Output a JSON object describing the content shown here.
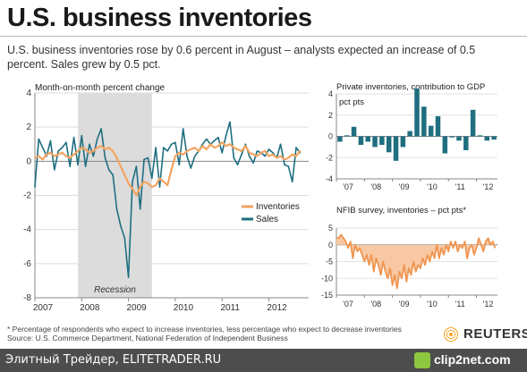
{
  "header": {
    "title": "U.S. business inventories",
    "subtitle": "U.S. business inventories rose by 0.6 percent in August – analysts expected an increase of 0.5 percent. Sales grew by 0.5 pct."
  },
  "colors": {
    "inventories": "#f4a460",
    "sales": "#1f6f80",
    "recession": "#dcdcdc",
    "nfib_fill": "#f8c8a4",
    "nfib_line": "#f09550"
  },
  "chart_data": [
    {
      "type": "line",
      "title": "Month-on-month percent change",
      "x_tick_labels": [
        "2007",
        "2008",
        "2009",
        "2010",
        "2011",
        "2012"
      ],
      "y_tick_labels": [
        "4",
        "2",
        "0",
        "-2",
        "-4",
        "-6",
        "-8"
      ],
      "ylim": [
        -8,
        4
      ],
      "xlim": [
        2007.0,
        2012.85
      ],
      "annotation": "Recession",
      "recession_span": [
        2007.92,
        2009.5
      ],
      "legend": [
        "Inventories",
        "Sales"
      ],
      "legend_position": "right",
      "grid": "horizontal",
      "series": [
        {
          "name": "Inventories",
          "color": "#f4a460",
          "x": [
            2007.0,
            2007.083,
            2007.167,
            2007.25,
            2007.333,
            2007.417,
            2007.5,
            2007.583,
            2007.667,
            2007.75,
            2007.833,
            2007.917,
            2008.0,
            2008.083,
            2008.167,
            2008.25,
            2008.333,
            2008.417,
            2008.5,
            2008.583,
            2008.667,
            2008.75,
            2008.833,
            2008.917,
            2009.0,
            2009.083,
            2009.167,
            2009.25,
            2009.333,
            2009.417,
            2009.5,
            2009.583,
            2009.667,
            2009.75,
            2009.833,
            2009.917,
            2010.0,
            2010.083,
            2010.167,
            2010.25,
            2010.333,
            2010.417,
            2010.5,
            2010.583,
            2010.667,
            2010.75,
            2010.833,
            2010.917,
            2011.0,
            2011.083,
            2011.167,
            2011.25,
            2011.333,
            2011.417,
            2011.5,
            2011.583,
            2011.667,
            2011.75,
            2011.833,
            2011.917,
            2012.0,
            2012.083,
            2012.167,
            2012.25,
            2012.333,
            2012.417,
            2012.5,
            2012.583,
            2012.667
          ],
          "values": [
            0.2,
            0.3,
            0.1,
            0.4,
            0.5,
            0.3,
            0.4,
            0.5,
            0.3,
            0.2,
            0.4,
            0.6,
            0.8,
            0.7,
            0.5,
            0.6,
            0.8,
            0.9,
            0.7,
            0.8,
            0.6,
            0.2,
            -0.3,
            -0.8,
            -1.3,
            -1.6,
            -2.0,
            -1.5,
            -1.2,
            -1.3,
            -1.5,
            -1.4,
            -1.0,
            -1.2,
            -1.4,
            -0.5,
            0.3,
            0.5,
            0.4,
            0.6,
            0.7,
            0.8,
            0.6,
            0.9,
            0.7,
            1.0,
            0.8,
            0.9,
            1.1,
            0.9,
            1.0,
            0.8,
            0.7,
            0.6,
            0.9,
            0.5,
            0.4,
            0.3,
            0.5,
            0.6,
            0.3,
            0.4,
            0.2,
            0.3,
            0.1,
            0.2,
            0.4,
            0.3,
            0.6
          ]
        },
        {
          "name": "Sales",
          "color": "#1f6f80",
          "x": [
            2007.0,
            2007.083,
            2007.167,
            2007.25,
            2007.333,
            2007.417,
            2007.5,
            2007.583,
            2007.667,
            2007.75,
            2007.833,
            2007.917,
            2008.0,
            2008.083,
            2008.167,
            2008.25,
            2008.333,
            2008.417,
            2008.5,
            2008.583,
            2008.667,
            2008.75,
            2008.833,
            2008.917,
            2009.0,
            2009.083,
            2009.167,
            2009.25,
            2009.333,
            2009.417,
            2009.5,
            2009.583,
            2009.667,
            2009.75,
            2009.833,
            2009.917,
            2010.0,
            2010.083,
            2010.167,
            2010.25,
            2010.333,
            2010.417,
            2010.5,
            2010.583,
            2010.667,
            2010.75,
            2010.833,
            2010.917,
            2011.0,
            2011.083,
            2011.167,
            2011.25,
            2011.333,
            2011.417,
            2011.5,
            2011.583,
            2011.667,
            2011.75,
            2011.833,
            2011.917,
            2012.0,
            2012.083,
            2012.167,
            2012.25,
            2012.333,
            2012.417,
            2012.5,
            2012.583,
            2012.667
          ],
          "values": [
            -1.5,
            1.3,
            0.8,
            0.3,
            1.2,
            -0.5,
            0.6,
            0.8,
            1.1,
            -0.3,
            1.4,
            -0.2,
            1.5,
            -0.3,
            1.0,
            0.3,
            1.3,
            1.9,
            0.2,
            -0.5,
            -0.8,
            -2.8,
            -3.8,
            -4.5,
            -6.8,
            -1.2,
            -0.3,
            -2.8,
            0.1,
            0.2,
            -1.0,
            0.8,
            -1.5,
            0.8,
            0.6,
            1.0,
            1.1,
            -0.2,
            1.9,
            0.3,
            -0.4,
            0.3,
            0.6,
            1.0,
            1.3,
            1.0,
            1.2,
            1.4,
            0.5,
            1.5,
            2.3,
            0.2,
            -0.2,
            0.4,
            1.0,
            0.3,
            -0.1,
            0.6,
            0.5,
            0.3,
            0.7,
            0.5,
            0.2,
            1.0,
            -0.2,
            -0.3,
            -1.2,
            0.8,
            0.5
          ]
        }
      ]
    },
    {
      "type": "bar",
      "title": "Private inventories, contribution to GDP",
      "ylabel": "pct pts",
      "x_tick_labels": [
        "'07",
        "'08",
        "'09",
        "'10",
        "'11",
        "'12"
      ],
      "y_tick_labels": [
        "4",
        "2",
        "0",
        "-2",
        "-4"
      ],
      "ylim": [
        -4,
        4
      ],
      "series": [
        {
          "name": "Private inventories",
          "color": "#1f6f80",
          "x": [
            2007.125,
            2007.375,
            2007.625,
            2007.875,
            2008.125,
            2008.375,
            2008.625,
            2008.875,
            2009.125,
            2009.375,
            2009.625,
            2009.875,
            2010.125,
            2010.375,
            2010.625,
            2010.875,
            2011.125,
            2011.375,
            2011.625,
            2011.875,
            2012.125,
            2012.375,
            2012.625
          ],
          "values": [
            -0.5,
            0.1,
            0.9,
            -0.8,
            -0.5,
            -1.0,
            -0.8,
            -1.5,
            -2.3,
            -1.0,
            0.5,
            4.5,
            2.8,
            1.0,
            1.9,
            -1.6,
            -0.1,
            -0.4,
            -1.3,
            2.5,
            0.1,
            -0.4,
            -0.3
          ]
        }
      ]
    },
    {
      "type": "area",
      "title": "NFIB survey, inventories – pct pts*",
      "x_tick_labels": [
        "'07",
        "'08",
        "'09",
        "'10",
        "'11",
        "'12"
      ],
      "y_tick_labels": [
        "5",
        "0",
        "-5",
        "-10",
        "-15"
      ],
      "ylim": [
        -15,
        5
      ],
      "series": [
        {
          "name": "NFIB inventories",
          "color": "#f09550",
          "x": [
            2007.0,
            2007.083,
            2007.167,
            2007.25,
            2007.333,
            2007.417,
            2007.5,
            2007.583,
            2007.667,
            2007.75,
            2007.833,
            2007.917,
            2008.0,
            2008.083,
            2008.167,
            2008.25,
            2008.333,
            2008.417,
            2008.5,
            2008.583,
            2008.667,
            2008.75,
            2008.833,
            2008.917,
            2009.0,
            2009.083,
            2009.167,
            2009.25,
            2009.333,
            2009.417,
            2009.5,
            2009.583,
            2009.667,
            2009.75,
            2009.833,
            2009.917,
            2010.0,
            2010.083,
            2010.167,
            2010.25,
            2010.333,
            2010.417,
            2010.5,
            2010.583,
            2010.667,
            2010.75,
            2010.833,
            2010.917,
            2011.0,
            2011.083,
            2011.167,
            2011.25,
            2011.333,
            2011.417,
            2011.5,
            2011.583,
            2011.667,
            2011.75,
            2011.833,
            2011.917,
            2012.0,
            2012.083,
            2012.167,
            2012.25,
            2012.333,
            2012.417,
            2012.5,
            2012.583,
            2012.667
          ],
          "values": [
            2,
            2,
            3,
            2,
            1,
            -1,
            1,
            -4,
            0,
            -2,
            -1,
            -3,
            -5,
            -3,
            -6,
            -3,
            -8,
            -4,
            -6,
            -9,
            -5,
            -8,
            -10,
            -7,
            -12,
            -9,
            -13,
            -8,
            -10,
            -6,
            -11,
            -7,
            -9,
            -5,
            -8,
            -6,
            -7,
            -4,
            -6,
            -3,
            -5,
            -2,
            -4,
            0,
            -4,
            -1,
            -3,
            0,
            -2,
            1,
            -1,
            1,
            -2,
            0,
            -1,
            1,
            -4,
            -1,
            0,
            -3,
            -1,
            2,
            0,
            -2,
            1,
            2,
            0,
            1,
            -1
          ]
        }
      ]
    }
  ],
  "footnote": {
    "line1": "* Percentage of respondents who expect to increase inventories, less percentage who expect to decrease inventories",
    "line2": "Source: U.S. Commerce Department, National Federation of Independent Business"
  },
  "branding": {
    "reuters": "REUTERS",
    "site_label": "Элитный Трейдер, ELITETRADER.RU",
    "clip_logo": "clip2net.com"
  }
}
